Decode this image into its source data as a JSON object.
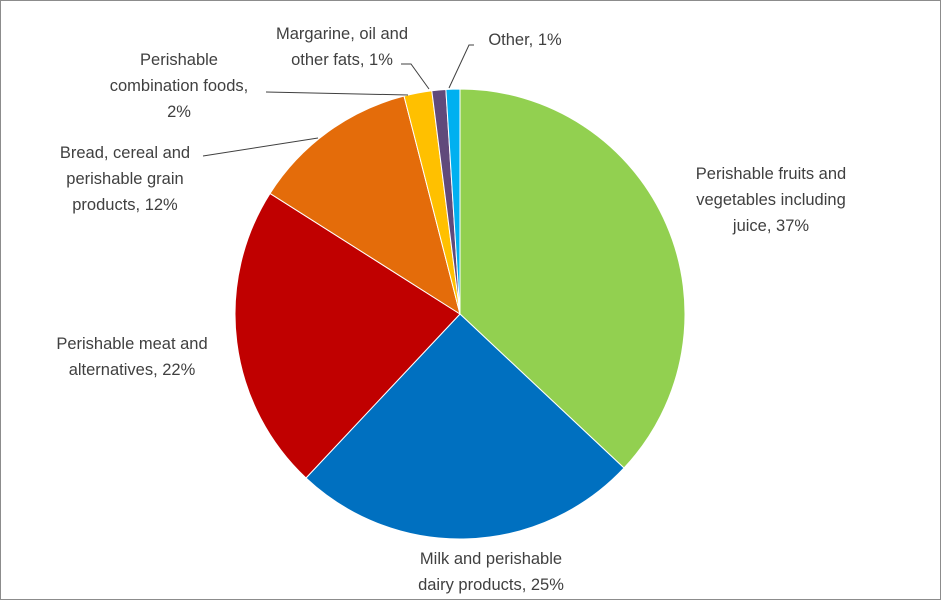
{
  "chart_data": {
    "type": "pie",
    "start": "top, clockwise",
    "slices": [
      {
        "label": "Perishable fruits and vegetables including juice, 37%",
        "value": 37,
        "color": "#92D050"
      },
      {
        "label": "Milk and perishable dairy products, 25%",
        "value": 25,
        "color": "#0070C0"
      },
      {
        "label": "Perishable meat and alternatives, 22%",
        "value": 22,
        "color": "#C00000"
      },
      {
        "label": "Bread, cereal and perishable grain products, 12%",
        "value": 12,
        "color": "#E46C0A"
      },
      {
        "label": "Perishable combination foods, 2%",
        "value": 2,
        "color": "#FFC000"
      },
      {
        "label": "Margarine, oil and other fats, 1%",
        "value": 1,
        "color": "#604A7B"
      },
      {
        "label": "Other, 1%",
        "value": 1,
        "color": "#00B0F0"
      }
    ]
  }
}
